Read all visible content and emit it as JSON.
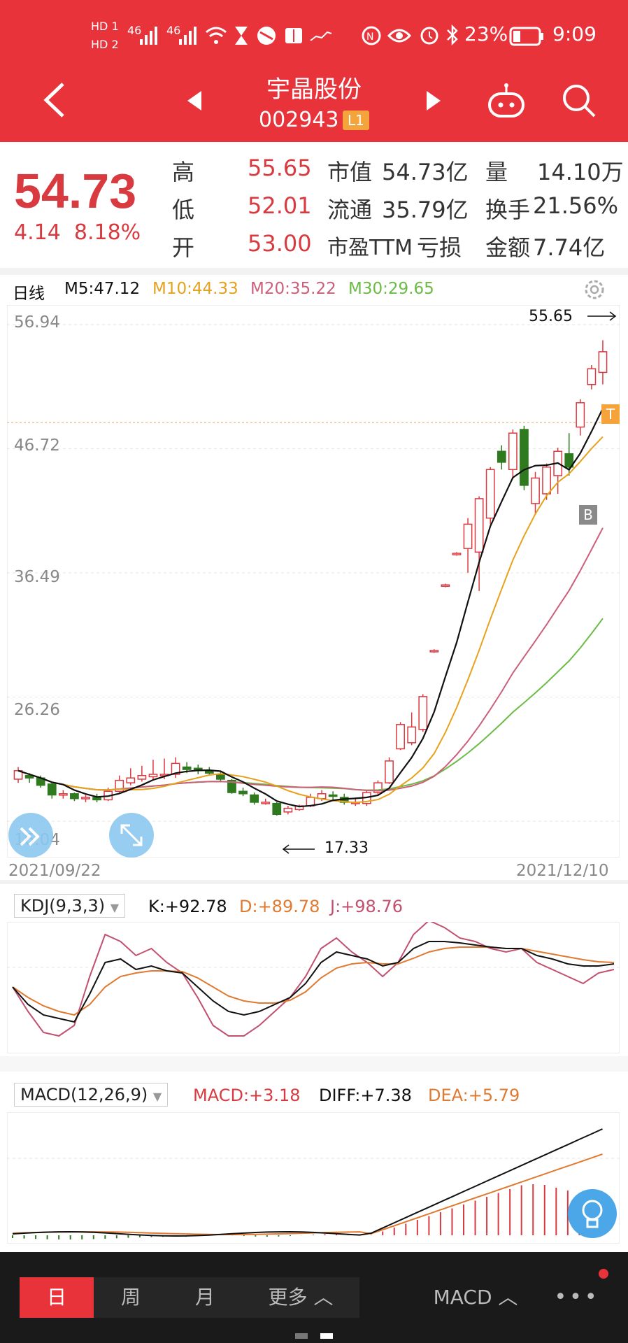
{
  "status_bar": {
    "hd1": "HD 1",
    "hd2": "HD 2",
    "network1": "46",
    "network2": "46",
    "battery": "23%",
    "time": "9:09"
  },
  "header": {
    "title": "宇晶股份",
    "code": "002943",
    "badge": "L1"
  },
  "quote": {
    "price": "54.73",
    "change": "4.14",
    "change_pct": "8.18%",
    "rows": [
      {
        "l1": "高",
        "v1": "55.65",
        "l2": "市值",
        "v2": "54.73亿",
        "l3": "量",
        "v3": "14.10万"
      },
      {
        "l1": "低",
        "v1": "52.01",
        "l2": "流通",
        "v2": "35.79亿",
        "l3": "换手",
        "v3": "21.56%"
      },
      {
        "l1": "开",
        "v1": "53.00",
        "l2": "市盈TTM",
        "v2": "亏损",
        "l3": "金额",
        "v3": "7.74亿"
      }
    ]
  },
  "kline": {
    "period": "日线",
    "ma5": "M5:47.12",
    "ma10": "M10:44.33",
    "ma20": "M20:35.22",
    "ma30": "M30:29.65",
    "y_labels": [
      "56.94",
      "46.72",
      "36.49",
      "26.26",
      "16.04"
    ],
    "high_marker": "55.65",
    "low_marker": "17.33",
    "date_start": "2021/09/22",
    "date_end": "2021/12/10",
    "b_marker": "B",
    "t_marker": "T",
    "colors": {
      "up": "#d93a40",
      "down": "#2f7a1f",
      "ma5": "#111111",
      "ma10": "#e6a21d",
      "ma20": "#cc5f7a",
      "ma30": "#6cbb47"
    }
  },
  "kdj": {
    "name": "KDJ(9,3,3)",
    "k": "K:+92.78",
    "d": "D:+89.78",
    "j": "J:+98.76"
  },
  "macd": {
    "name": "MACD(12,26,9)",
    "macd": "MACD:+3.18",
    "diff": "DIFF:+7.38",
    "dea": "DEA:+5.79"
  },
  "bottom_tabs": {
    "day": "日",
    "week": "周",
    "month": "月",
    "more": "更多 ︿",
    "indicator": "MACD ︿",
    "menu": "•••"
  },
  "chart_data": [
    {
      "type": "candlestick",
      "title": "日线",
      "x_range": [
        "2021/09/22",
        "2021/12/10"
      ],
      "y_ticks": [
        56.94,
        46.72,
        36.49,
        26.26,
        16.04
      ],
      "high": 55.65,
      "low": 17.33,
      "series": [
        {
          "name": "M5",
          "last": 47.12
        },
        {
          "name": "M10",
          "last": 44.33
        },
        {
          "name": "M20",
          "last": 35.22
        },
        {
          "name": "M30",
          "last": 29.65
        }
      ]
    },
    {
      "type": "line",
      "title": "KDJ(9,3,3)",
      "series": [
        {
          "name": "K",
          "last": 92.78
        },
        {
          "name": "D",
          "last": 89.78
        },
        {
          "name": "J",
          "last": 98.76
        }
      ]
    },
    {
      "type": "bar",
      "title": "MACD(12,26,9)",
      "series": [
        {
          "name": "MACD",
          "last": 3.18
        },
        {
          "name": "DIFF",
          "last": 7.38
        },
        {
          "name": "DEA",
          "last": 5.79
        }
      ]
    }
  ]
}
